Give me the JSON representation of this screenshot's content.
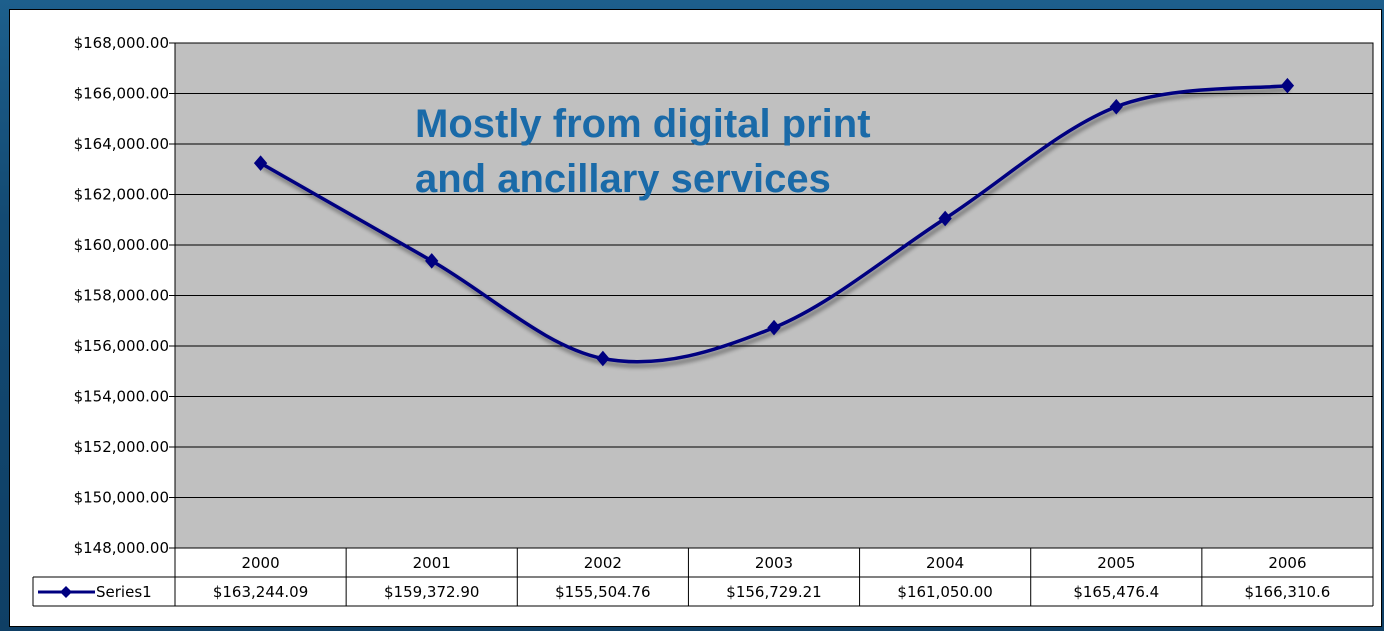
{
  "chart_data": {
    "type": "line",
    "categories": [
      "2000",
      "2001",
      "2002",
      "2003",
      "2004",
      "2005",
      "2006"
    ],
    "series": [
      {
        "name": "Series1",
        "values": [
          163244.09,
          159372.9,
          155504.76,
          156729.21,
          161050.0,
          165476.4,
          166310.6
        ],
        "table_labels": [
          "$163,244.09",
          "$159,372.90",
          "$155,504.76",
          "$156,729.21",
          "$161,050.00",
          "$165,476.4",
          "$166,310.6"
        ]
      }
    ],
    "ylim": [
      148000,
      168000
    ],
    "ytick_step": 2000,
    "ytick_labels": [
      "$148,000.00",
      "$150,000.00",
      "$152,000.00",
      "$154,000.00",
      "$156,000.00",
      "$158,000.00",
      "$160,000.00",
      "$162,000.00",
      "$164,000.00",
      "$166,000.00",
      "$168,000.00"
    ],
    "grid": true,
    "legend": "data-table",
    "annotation": [
      "Mostly from digital print",
      "and ancillary services"
    ],
    "colors": {
      "line": "#000080",
      "plot_background": "#c0c0c0",
      "annotation": "#1a6aa8",
      "page_background": "#134a73"
    },
    "xlabel": "",
    "ylabel": ""
  }
}
